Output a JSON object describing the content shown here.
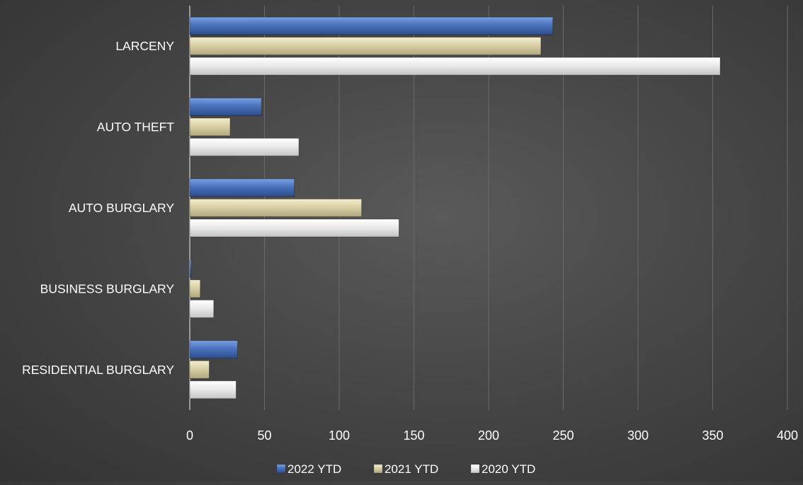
{
  "chart_data": {
    "type": "bar",
    "orientation": "horizontal",
    "categories": [
      "LARCENY",
      "AUTO THEFT",
      "AUTO BURGLARY",
      "BUSINESS BURGLARY",
      "RESIDENTIAL BURGLARY"
    ],
    "series": [
      {
        "name": "2022 YTD",
        "values": [
          243,
          48,
          70,
          1,
          32
        ]
      },
      {
        "name": "2021 YTD",
        "values": [
          235,
          27,
          115,
          7,
          13
        ]
      },
      {
        "name": "2020 YTD",
        "values": [
          355,
          73,
          140,
          16,
          31
        ]
      }
    ],
    "xlim": [
      0,
      400
    ],
    "x_ticks": [
      0,
      50,
      100,
      150,
      200,
      250,
      300,
      350,
      400
    ],
    "title": "",
    "xlabel": "",
    "ylabel": "",
    "grid": "vertical",
    "legend_position": "bottom",
    "colors": {
      "background": "#404040",
      "text": "#ffffff",
      "gridline": "#6a6a6a",
      "2022 YTD": "#3f64a8",
      "2021 YTD": "#d9d0a6",
      "2020 YTD": "#e8e8e8"
    }
  }
}
